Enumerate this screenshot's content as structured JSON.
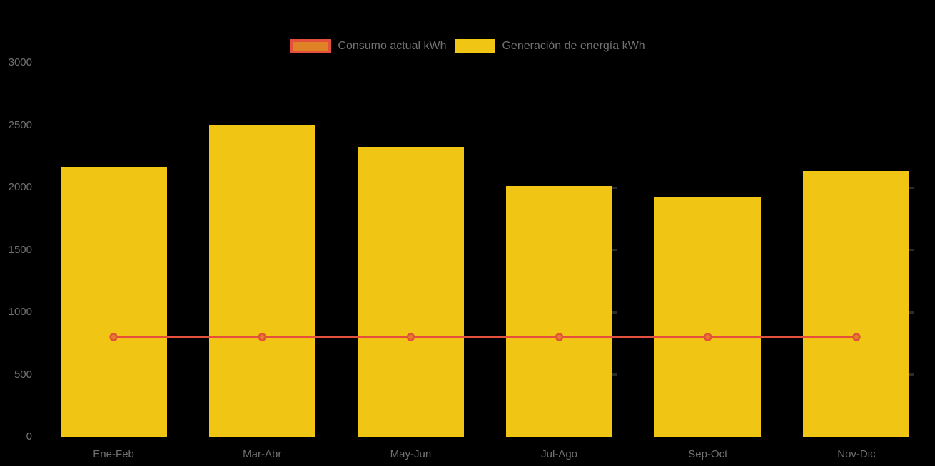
{
  "chart": {
    "background": "#000000",
    "text_color": "#717171",
    "legend": {
      "items": [
        {
          "label": "Consumo actual kWh",
          "swatch_fill": "#DF8226",
          "swatch_border": "#E5503C",
          "series_type": "line"
        },
        {
          "label": "Generación de energía kWh",
          "swatch_fill": "#F0C514",
          "swatch_border": "",
          "series_type": "bar"
        }
      ]
    }
  },
  "chart_data": {
    "type": "bar",
    "title": "",
    "xlabel": "",
    "ylabel": "",
    "categories": [
      "Ene-Feb",
      "Mar-Abr",
      "May-Jun",
      "Jul-Ago",
      "Sep-Oct",
      "Nov-Dic"
    ],
    "series": [
      {
        "name": "Generación de energía kWh",
        "type": "bar",
        "color": "#F0C514",
        "values": [
          2160,
          2500,
          2320,
          2010,
          1920,
          2130
        ]
      },
      {
        "name": "Consumo actual kWh",
        "type": "line",
        "color": "#E5503C",
        "point_fill": "#DF8226",
        "values": [
          800,
          800,
          800,
          800,
          800,
          800
        ]
      }
    ],
    "ylim": [
      0,
      3000
    ],
    "yticks": [
      0,
      500,
      1000,
      1500,
      2000,
      2500,
      3000
    ],
    "grid": false,
    "legend_position": "top",
    "minor_ticks": {
      "color": "#2B2B2B",
      "category_indexes": [
        3,
        5
      ],
      "values": [
        500,
        1000,
        1500,
        2000
      ]
    }
  }
}
